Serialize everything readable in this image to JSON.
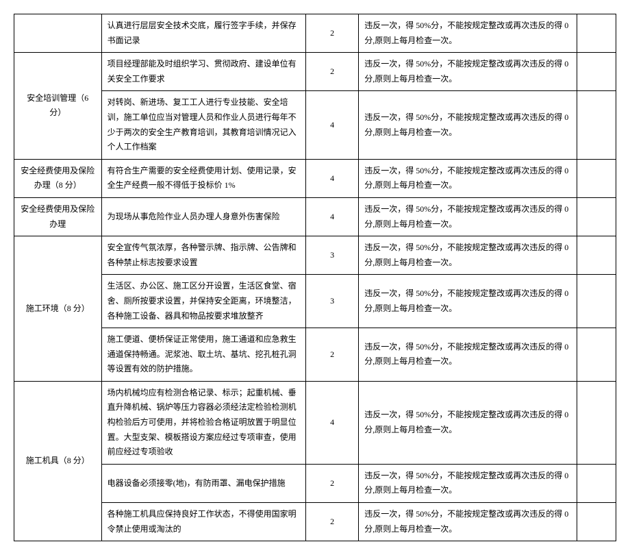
{
  "rows": [
    {
      "cat": "",
      "desc": "认真进行层层安全技术交底，履行签字手续，并保存书面记录",
      "score": "2",
      "rule": "违反一次，得 50%分，不能按规定整改或再次违反的得 0 分,原则上每月检查一次。",
      "last": "",
      "catRowspan": 1
    },
    {
      "cat": "安全培训管理（6 分）",
      "desc": "项目经理部能及时组织学习、贯彻政府、建设单位有关安全工作要求",
      "score": "2",
      "rule": "违反一次，得 50%分，不能按规定整改或再次违反的得 0 分,原则上每月检查一次。",
      "last": "",
      "catRowspan": 2
    },
    {
      "desc": "对转岗、新进场、复工工人进行专业技能、安全培训，施工单位应当对管理人员和作业人员进行每年不少于两次的安全生产教育培训，其教育培训情况记入个人工作档案",
      "score": "4",
      "rule": "违反一次，得 50%分，不能按规定整改或再次违反的得 0 分,原则上每月检查一次。",
      "last": ""
    },
    {
      "cat": "安全经费使用及保险办理（8 分）",
      "desc": "有符合生产需要的安全经费使用计划、使用记录，安全生产经费一般不得低于投标价 1%",
      "score": "4",
      "rule": "违反一次，得 50%分，不能按规定整改或再次违反的得 0 分,原则上每月检查一次。",
      "last": "",
      "catRowspan": 1
    },
    {
      "cat": "安全经费使用及保险办理",
      "desc": "为现场从事危险作业人员办理人身意外伤害保险",
      "score": "4",
      "rule": "违反一次，得 50%分，不能按规定整改或再次违反的得 0 分,原则上每月检查一次。",
      "last": "",
      "catRowspan": 1
    },
    {
      "cat": "施工环境（8 分）",
      "desc": "安全宣传气氛浓厚，各种警示牌、指示牌、公告牌和各种禁止标志按要求设置",
      "score": "3",
      "rule": "违反一次，得 50%分，不能按规定整改或再次违反的得 0 分,原则上每月检查一次。",
      "last": "",
      "catRowspan": 3
    },
    {
      "desc": "生活区、办公区、施工区分开设置，生活区食堂、宿舍、厕所按要求设置，并保持安全距离，环境整洁，各种施工设备、器具和物品按要求堆放整齐",
      "score": "3",
      "rule": "违反一次，得 50%分，不能按规定整改或再次违反的得 0 分,原则上每月检查一次。",
      "last": ""
    },
    {
      "desc": "施工便道、便桥保证正常使用，施工通道和应急救生通道保持畅通。泥浆池、取土坑、基坑、挖孔桩孔洞等设置有效的防护措施。",
      "score": "2",
      "rule": "违反一次，得 50%分，不能按规定整改或再次违反的得 0 分,原则上每月检查一次。",
      "last": ""
    },
    {
      "cat": "施工机具（8 分）",
      "desc": "场内机械均应有检测合格记录、标示；起重机械、垂直升降机械、锅炉等压力容器必须经法定检验检测机构检验后方可使用，并将检验合格证明放置于明显位置。大型支架、模板搭设方案应经过专项审查，使用前应经过专项验收",
      "score": "4",
      "rule": "违反一次，得 50%分，不能按规定整改或再次违反的得 0 分,原则上每月检查一次。",
      "last": "",
      "catRowspan": 3
    },
    {
      "desc": "电器设备必须接零(地)，有防雨罩、漏电保护措施",
      "score": "2",
      "rule": "违反一次，得 50%分，不能按规定整改或再次违反的得 0 分,原则上每月检查一次。",
      "last": ""
    },
    {
      "desc": "各种施工机具应保持良好工作状态，不得使用国家明令禁止使用或淘汰的",
      "score": "2",
      "rule": "违反一次，得 50%分，不能按规定整改或再次违反的得 0 分,原则上每月检查一次。",
      "last": ""
    }
  ]
}
